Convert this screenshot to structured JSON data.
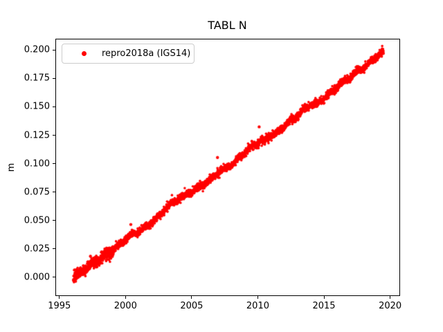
{
  "figure": {
    "background": "#ffffff",
    "text_color": "#000000"
  },
  "chart_data": {
    "type": "scatter",
    "title": "TABL N",
    "xlabel": "",
    "ylabel": "m",
    "grid": false,
    "xlim": [
      1994.7,
      2020.7
    ],
    "ylim": [
      -0.016,
      0.21
    ],
    "xticks": [
      1995,
      2000,
      2005,
      2010,
      2015,
      2020
    ],
    "xtick_labels": [
      "1995",
      "2000",
      "2005",
      "2010",
      "2015",
      "2020"
    ],
    "yticks": [
      0.0,
      0.025,
      0.05,
      0.075,
      0.1,
      0.125,
      0.15,
      0.175,
      0.2
    ],
    "ytick_labels": [
      "0.000",
      "0.025",
      "0.050",
      "0.075",
      "0.100",
      "0.125",
      "0.150",
      "0.175",
      "0.200"
    ],
    "legend": {
      "position": "upper-left",
      "entries": [
        {
          "label": "repro2018a (IGS14)",
          "color": "#ff0000",
          "marker": "dot"
        }
      ]
    },
    "series": [
      {
        "name": "repro2018a (IGS14)",
        "color": "#ff0000",
        "marker": "dot",
        "marker_radius_px": 1.8,
        "x_start": 1996.0,
        "x_end": 2019.45,
        "points_per_year": 150,
        "noise_std": 0.0016,
        "noise_std_early": 0.0024,
        "early_until": 1999.0,
        "annual_amplitude": 0.0008,
        "trend_anchors": [
          [
            1996.0,
            -0.0005
          ],
          [
            1996.5,
            0.0047
          ],
          [
            1997.0,
            0.008
          ],
          [
            1997.5,
            0.0137
          ],
          [
            1998.0,
            0.0164
          ],
          [
            1998.5,
            0.0211
          ],
          [
            1999.0,
            0.0239
          ],
          [
            1999.5,
            0.0296
          ],
          [
            2000.0,
            0.0343
          ],
          [
            2000.5,
            0.039
          ],
          [
            2001.0,
            0.0408
          ],
          [
            2001.5,
            0.0445
          ],
          [
            2002.0,
            0.0497
          ],
          [
            2002.5,
            0.0544
          ],
          [
            2003.0,
            0.0607
          ],
          [
            2003.5,
            0.0664
          ],
          [
            2004.0,
            0.0701
          ],
          [
            2004.5,
            0.0733
          ],
          [
            2005.0,
            0.0761
          ],
          [
            2005.5,
            0.0798
          ],
          [
            2006.0,
            0.083
          ],
          [
            2006.5,
            0.0882
          ],
          [
            2007.0,
            0.0935
          ],
          [
            2007.5,
            0.0967
          ],
          [
            2008.0,
            0.0999
          ],
          [
            2008.5,
            0.1051
          ],
          [
            2009.0,
            0.1109
          ],
          [
            2009.5,
            0.1161
          ],
          [
            2010.0,
            0.1193
          ],
          [
            2010.5,
            0.122
          ],
          [
            2011.0,
            0.1253
          ],
          [
            2011.5,
            0.129
          ],
          [
            2012.0,
            0.1342
          ],
          [
            2012.5,
            0.1389
          ],
          [
            2013.0,
            0.1432
          ],
          [
            2013.5,
            0.1494
          ],
          [
            2014.0,
            0.1526
          ],
          [
            2014.5,
            0.1543
          ],
          [
            2015.0,
            0.1586
          ],
          [
            2015.5,
            0.1638
          ],
          [
            2016.0,
            0.1685
          ],
          [
            2016.5,
            0.1737
          ],
          [
            2017.0,
            0.177
          ],
          [
            2017.5,
            0.1822
          ],
          [
            2018.0,
            0.1854
          ],
          [
            2018.5,
            0.1906
          ],
          [
            2019.0,
            0.1949
          ],
          [
            2019.45,
            0.1987
          ]
        ],
        "outliers": [
          [
            1997.3,
            0.019
          ],
          [
            2000.35,
            0.047
          ],
          [
            2006.9,
            0.106
          ],
          [
            2010.05,
            0.133
          ]
        ]
      }
    ]
  }
}
